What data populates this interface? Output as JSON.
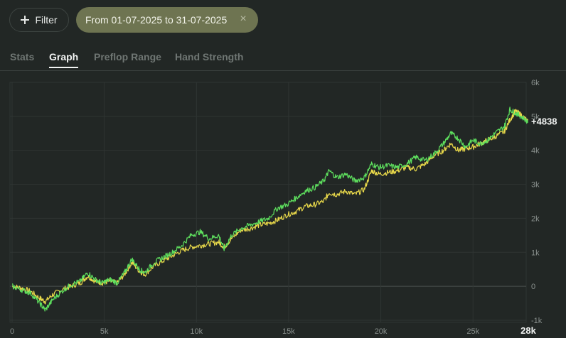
{
  "filter": {
    "label": "Filter",
    "icon": "plus-icon"
  },
  "date_range": {
    "label": "From 01-07-2025 to 31-07-2025",
    "close_icon": "close-icon"
  },
  "tabs": [
    {
      "label": "Stats",
      "active": false
    },
    {
      "label": "Graph",
      "active": true
    },
    {
      "label": "Preflop Range",
      "active": false
    },
    {
      "label": "Hand Strength",
      "active": false
    }
  ],
  "chart_data": {
    "type": "line",
    "title": "",
    "xlabel": "",
    "ylabel": "",
    "xlim": [
      0,
      28000
    ],
    "ylim": [
      -1000,
      6000
    ],
    "x_ticks": [
      "0",
      "5k",
      "10k",
      "15k",
      "20k",
      "25k",
      "28k"
    ],
    "y_ticks": [
      "6k",
      "5k",
      "4k",
      "3k",
      "2k",
      "1k",
      "0",
      "-1k"
    ],
    "grid": true,
    "end_label": "+4838",
    "colors": {
      "green": "#5ee05e",
      "yellow": "#e8d84a"
    },
    "series": [
      {
        "color": "green",
        "x": [
          0,
          500,
          1000,
          1500,
          1800,
          2200,
          2700,
          3200,
          3700,
          4100,
          4500,
          4900,
          5300,
          5700,
          6100,
          6500,
          6900,
          7200,
          7700,
          8200,
          8700,
          9200,
          9700,
          10200,
          10700,
          11200,
          11500,
          11900,
          12400,
          12900,
          13400,
          13900,
          14400,
          14900,
          15400,
          15900,
          16400,
          16900,
          17200,
          17600,
          18100,
          18600,
          19100,
          19500,
          19900,
          20400,
          20900,
          21400,
          21900,
          22400,
          22900,
          23400,
          23800,
          24200,
          24600,
          25000,
          25400,
          25800,
          26200,
          26700,
          27000,
          27300,
          27600,
          28000
        ],
        "y": [
          0,
          -100,
          -200,
          -500,
          -700,
          -400,
          -150,
          50,
          150,
          400,
          200,
          100,
          200,
          100,
          400,
          800,
          500,
          400,
          700,
          850,
          1000,
          1200,
          1500,
          1600,
          1400,
          1500,
          1100,
          1500,
          1700,
          1800,
          1900,
          2000,
          2300,
          2400,
          2600,
          2800,
          2900,
          3100,
          3400,
          3200,
          3300,
          3100,
          3200,
          3600,
          3500,
          3550,
          3500,
          3600,
          3800,
          3700,
          3900,
          4200,
          4500,
          4350,
          4100,
          4300,
          4200,
          4300,
          4500,
          4700,
          5200,
          5100,
          5000,
          4830
        ]
      },
      {
        "color": "yellow",
        "x": [
          0,
          500,
          1000,
          1500,
          1800,
          2200,
          2700,
          3200,
          3700,
          4100,
          4500,
          4900,
          5300,
          5700,
          6100,
          6500,
          6900,
          7200,
          7700,
          8200,
          8700,
          9200,
          9700,
          10200,
          10700,
          11200,
          11500,
          11900,
          12400,
          12900,
          13400,
          13900,
          14400,
          14900,
          15400,
          15900,
          16400,
          16900,
          17200,
          17600,
          18100,
          18600,
          19100,
          19500,
          19900,
          20400,
          20900,
          21400,
          21900,
          22400,
          22900,
          23400,
          23800,
          24200,
          24600,
          25000,
          25400,
          25800,
          26200,
          26700,
          27000,
          27300,
          27600,
          28000
        ],
        "y": [
          0,
          -50,
          -150,
          -350,
          -450,
          -250,
          -100,
          0,
          100,
          300,
          150,
          100,
          150,
          100,
          350,
          700,
          450,
          350,
          600,
          750,
          900,
          1050,
          1150,
          1200,
          1250,
          1300,
          1150,
          1400,
          1650,
          1700,
          1800,
          1850,
          1950,
          2100,
          2200,
          2350,
          2400,
          2500,
          2750,
          2700,
          2800,
          2700,
          2850,
          3400,
          3300,
          3350,
          3400,
          3500,
          3450,
          3600,
          3850,
          4000,
          4200,
          4000,
          4050,
          4100,
          4200,
          4300,
          4400,
          4550,
          4900,
          5150,
          5050,
          4840
        ]
      }
    ]
  }
}
